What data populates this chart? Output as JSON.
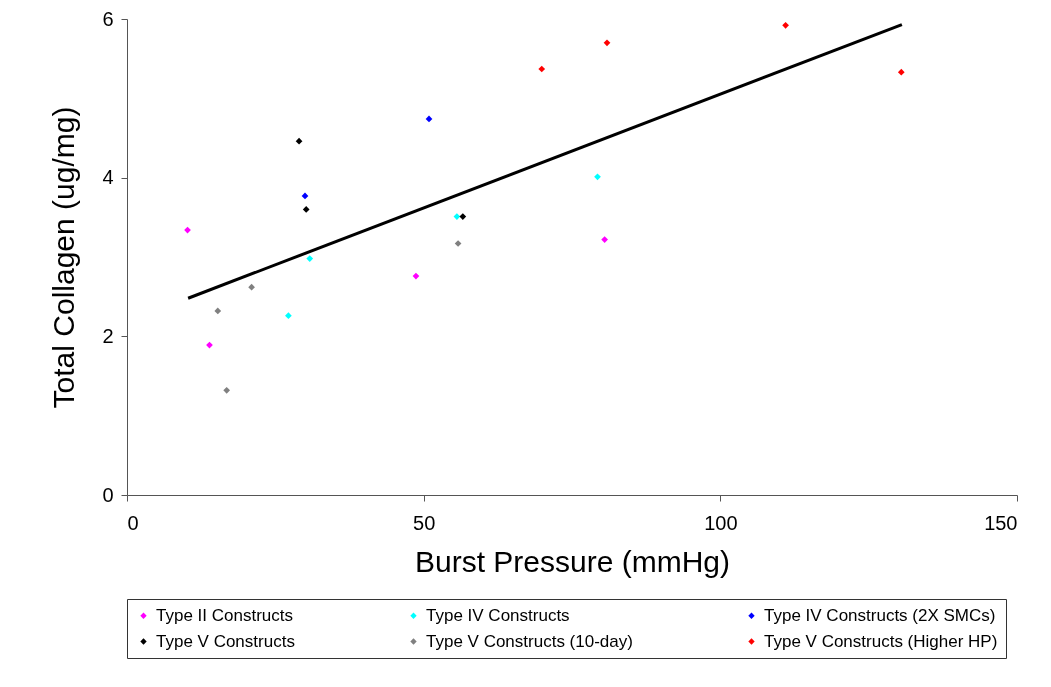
{
  "chart_data": {
    "type": "scatter",
    "xlabel": "Burst Pressure (mmHg)",
    "ylabel": "Total Collagen (ug/mg)",
    "xlim": [
      0,
      150
    ],
    "xticks": [
      0,
      50,
      100,
      150
    ],
    "ylim": [
      0,
      6
    ],
    "yticks": [
      0,
      2,
      4,
      6
    ],
    "grid": false,
    "legend": "bottom",
    "marker": "diamond",
    "series": [
      {
        "name": "Type II Constructs",
        "color": "#ff00ff",
        "x": [
          10.2,
          13.9,
          48.7,
          80.5
        ],
        "values": [
          3.34,
          1.89,
          2.76,
          3.22
        ]
      },
      {
        "name": "Type IV Constructs",
        "color": "#00ffff",
        "x": [
          27.2,
          30.8,
          55.6,
          79.3
        ],
        "values": [
          2.26,
          2.98,
          3.51,
          4.01
        ]
      },
      {
        "name": "Type IV Constructs (2X SMCs)",
        "color": "#0000ff",
        "x": [
          30.0,
          50.9
        ],
        "values": [
          3.77,
          4.74
        ]
      },
      {
        "name": "Type V Constructs",
        "color": "#000000",
        "x": [
          29.0,
          30.2,
          56.6
        ],
        "values": [
          4.46,
          3.6,
          3.51
        ]
      },
      {
        "name": "Type V Constructs (10-day)",
        "color": "#808080",
        "x": [
          15.3,
          16.8,
          21.0,
          55.8
        ],
        "values": [
          2.32,
          1.32,
          2.62,
          3.17
        ]
      },
      {
        "name": "Type V Constructs (Higher HP)",
        "color": "#ff0000",
        "x": [
          69.9,
          80.9,
          111.0,
          130.5
        ],
        "values": [
          5.37,
          5.7,
          5.92,
          5.33
        ]
      },
      {
        "type": "line",
        "color": "#000000",
        "marker": "none",
        "x": [
          10.3,
          130.6
        ],
        "values": [
          2.48,
          5.93
        ]
      }
    ]
  }
}
